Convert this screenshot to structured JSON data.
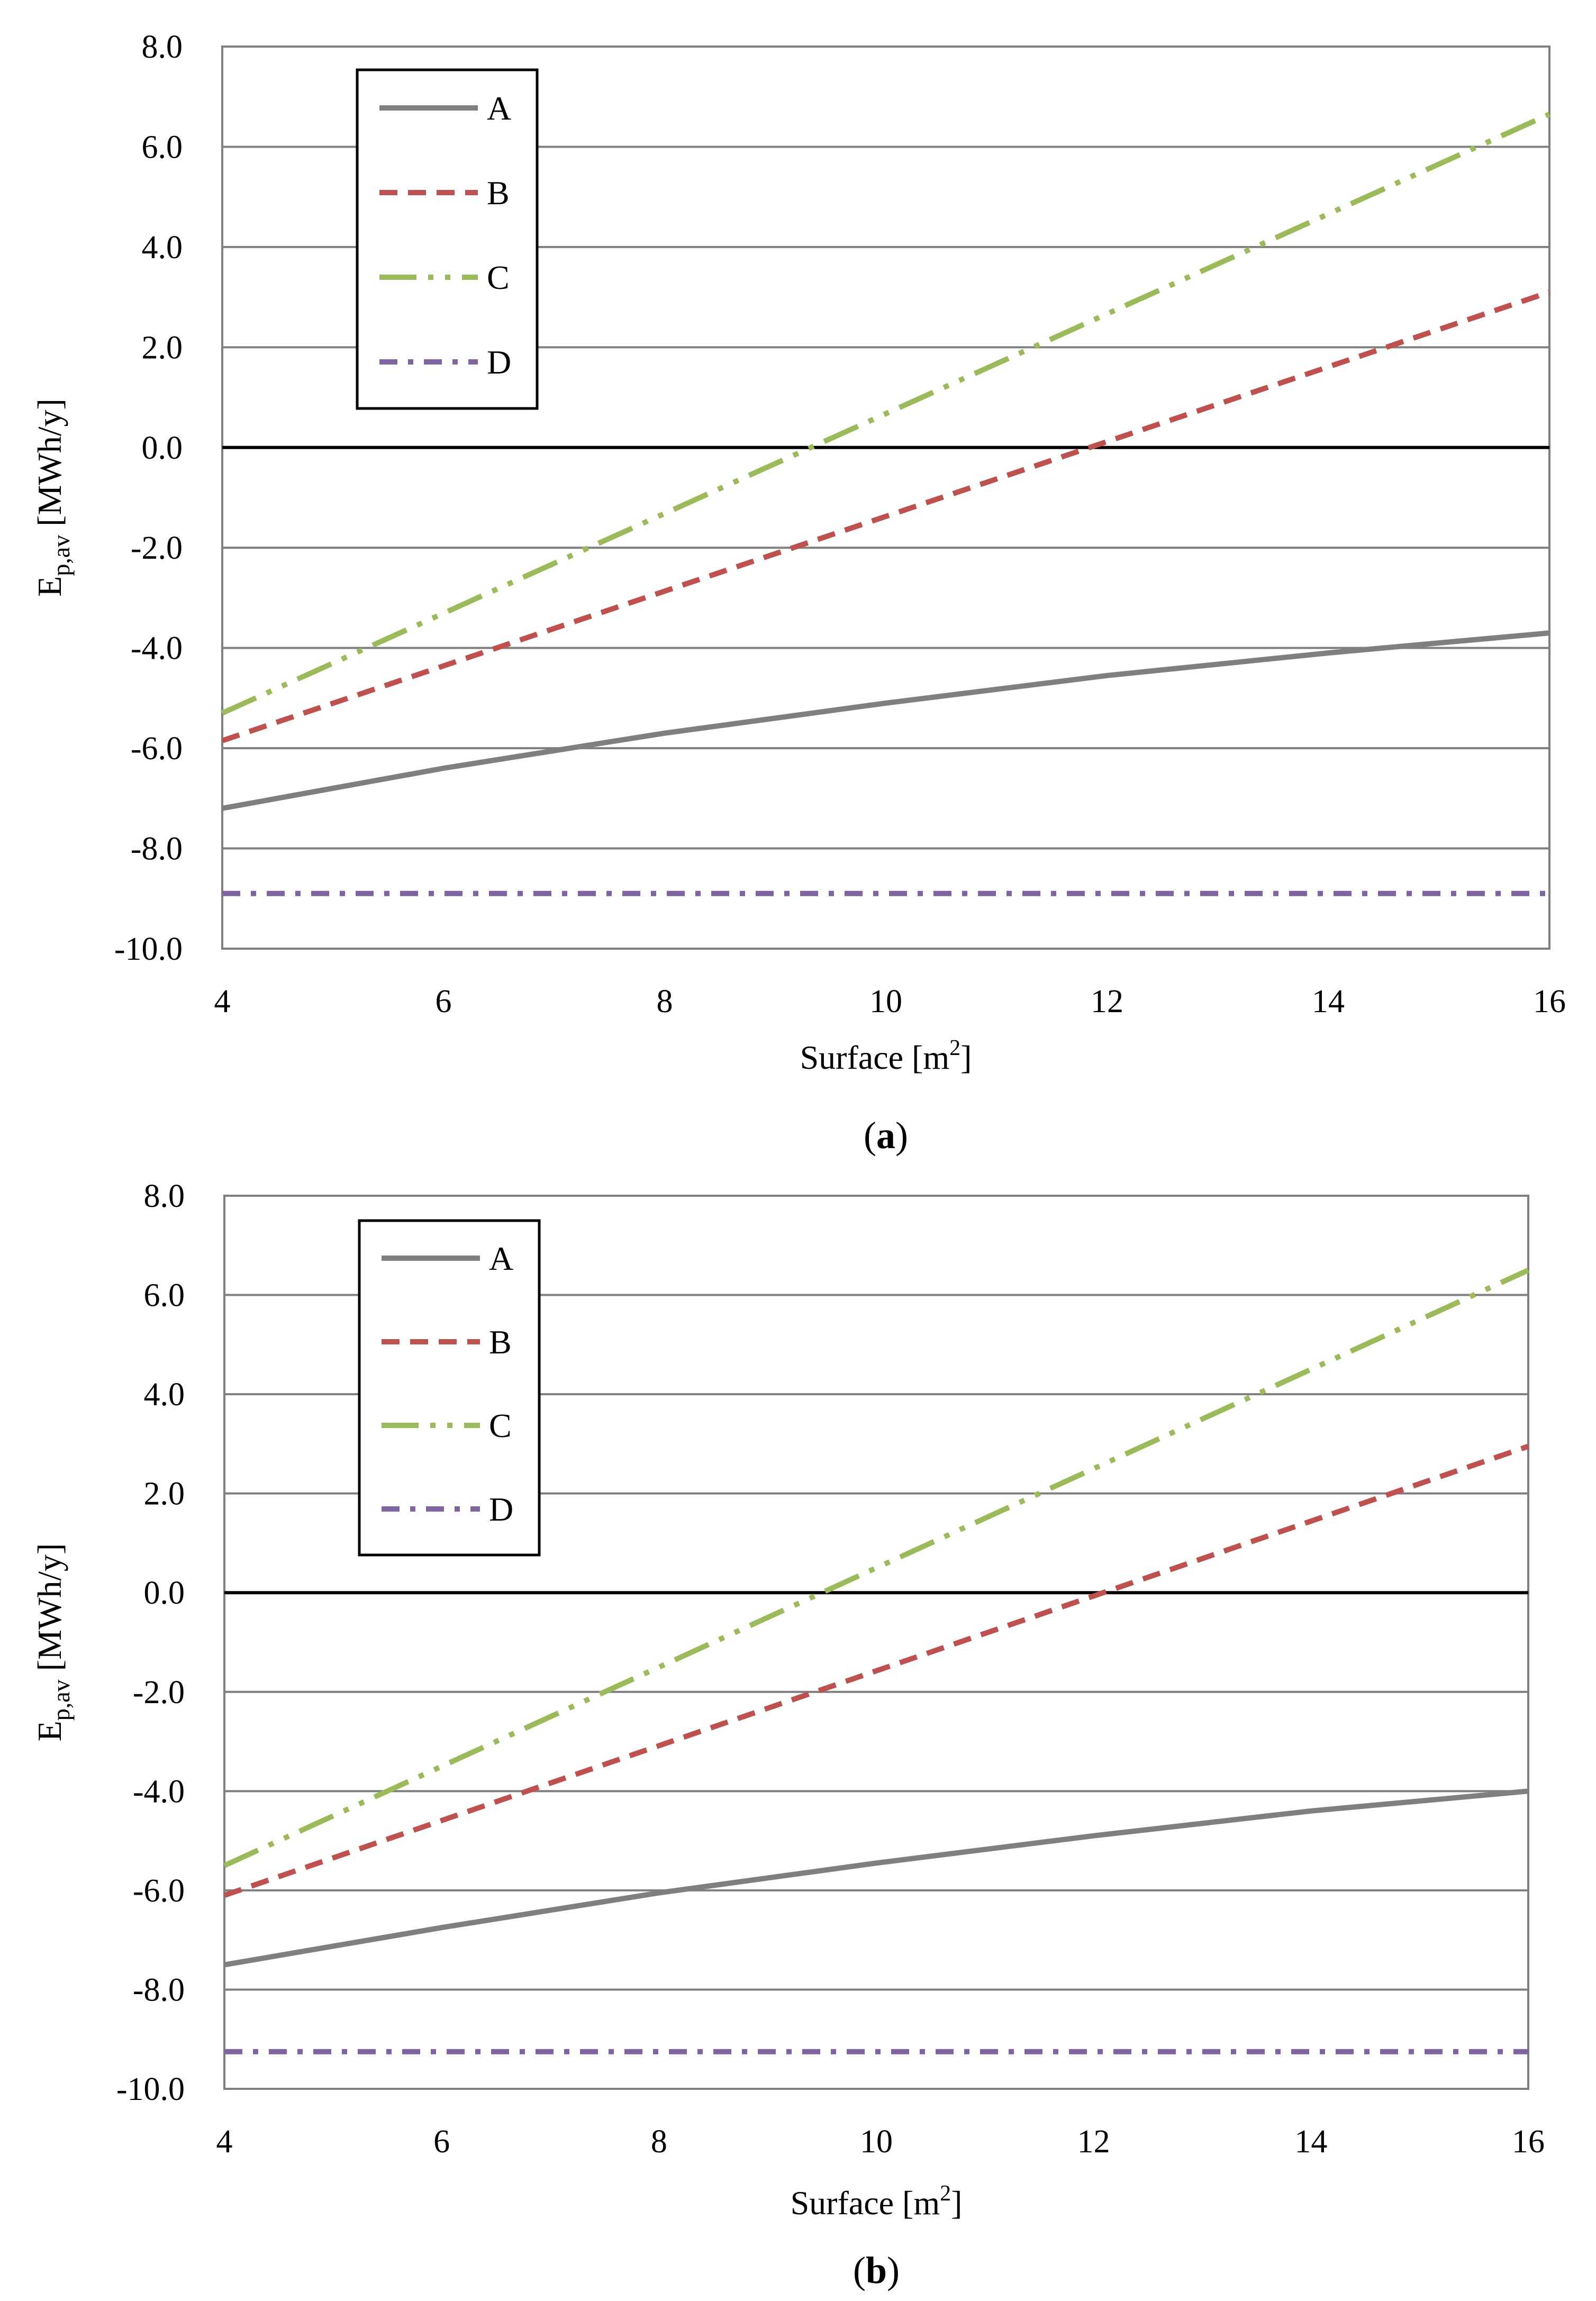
{
  "colors": {
    "A": "#7f7f7f",
    "B": "#c0504d",
    "C": "#9bbb59",
    "D": "#8064a2",
    "grid": "#7f7f7f",
    "zero_line": "#000000"
  },
  "chart_data": [
    {
      "panel": "a",
      "panel_label": "a",
      "type": "line",
      "xlabel": "Surface [m",
      "xlabel_sup": "2",
      "xlabel_end": "]",
      "ylabel_main": "E",
      "ylabel_sub": "p,av",
      "ylabel_unit": " [MWh/y]",
      "xlim": [
        4,
        16
      ],
      "ylim": [
        -10,
        8
      ],
      "xticks": [
        4,
        6,
        8,
        10,
        12,
        14,
        16
      ],
      "xtick_labels": [
        "4",
        "6",
        "8",
        "10",
        "12",
        "14",
        "16"
      ],
      "yticks": [
        8,
        6,
        4,
        2,
        0,
        -2,
        -4,
        -6,
        -8,
        -10
      ],
      "ytick_labels": [
        "8.0",
        "6.0",
        "4.0",
        "2.0",
        "0.0",
        "-2.0",
        "-4.0",
        "-6.0",
        "-8.0",
        "-10.0"
      ],
      "grid": true,
      "legend": "top-left",
      "series": [
        {
          "name": "A",
          "style": "solid",
          "x": [
            4,
            6,
            8,
            10,
            12,
            14,
            16
          ],
          "values": [
            -7.2,
            -6.4,
            -5.7,
            -5.1,
            -4.55,
            -4.1,
            -3.7
          ]
        },
        {
          "name": "B",
          "style": "dashed",
          "x": [
            4,
            16
          ],
          "values": [
            -5.85,
            3.1
          ]
        },
        {
          "name": "C",
          "style": "dash-dot-dot",
          "x": [
            4,
            16
          ],
          "values": [
            -5.3,
            6.65
          ]
        },
        {
          "name": "D",
          "style": "dash-dot",
          "x": [
            4,
            16
          ],
          "values": [
            -8.9,
            -8.9
          ]
        }
      ]
    },
    {
      "panel": "b",
      "panel_label": "b",
      "type": "line",
      "xlabel": "Surface [m",
      "xlabel_sup": "2",
      "xlabel_end": "]",
      "ylabel_main": "E",
      "ylabel_sub": "p,av",
      "ylabel_unit": " [MWh/y]",
      "xlim": [
        4,
        16
      ],
      "ylim": [
        -10,
        8
      ],
      "xticks": [
        4,
        6,
        8,
        10,
        12,
        14,
        16
      ],
      "xtick_labels": [
        "4",
        "6",
        "8",
        "10",
        "12",
        "14",
        "16"
      ],
      "yticks": [
        8,
        6,
        4,
        2,
        0,
        -2,
        -4,
        -6,
        -8,
        -10
      ],
      "ytick_labels": [
        "8.0",
        "6.0",
        "4.0",
        "2.0",
        "0.0",
        "-2.0",
        "-4.0",
        "-6.0",
        "-8.0",
        "-10.0"
      ],
      "grid": true,
      "legend": "top-left",
      "series": [
        {
          "name": "A",
          "style": "solid",
          "x": [
            4,
            6,
            8,
            10,
            12,
            14,
            16
          ],
          "values": [
            -7.5,
            -6.75,
            -6.05,
            -5.45,
            -4.9,
            -4.4,
            -4.0
          ]
        },
        {
          "name": "B",
          "style": "dashed",
          "x": [
            4,
            16
          ],
          "values": [
            -6.1,
            2.95
          ]
        },
        {
          "name": "C",
          "style": "dash-dot-dot",
          "x": [
            4,
            16
          ],
          "values": [
            -5.5,
            6.5
          ]
        },
        {
          "name": "D",
          "style": "dash-dot",
          "x": [
            4,
            16
          ],
          "values": [
            -9.25,
            -9.25
          ]
        }
      ]
    }
  ]
}
